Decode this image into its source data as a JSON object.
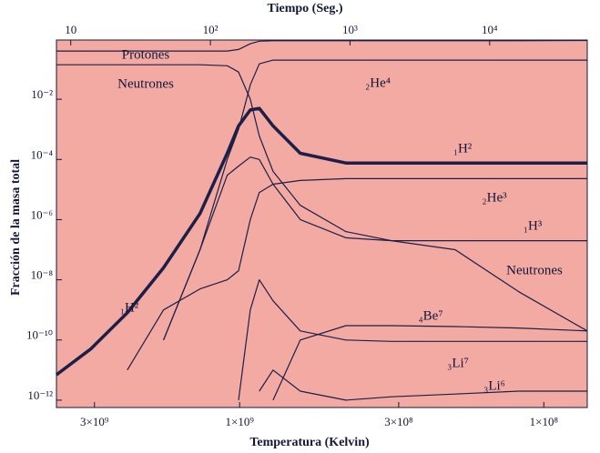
{
  "chart_data": {
    "type": "line",
    "x2label": "Tiempo (Seg.)",
    "xlabel": "Temperatura (Kelvin)",
    "ylabel": "Fracción de la masa total",
    "log_x": true,
    "log_y": true,
    "xlim": [
      7.9,
      50000
    ],
    "xticks": [
      10,
      {
        "value": 100,
        "label": "10²"
      },
      {
        "value": 1000,
        "label": "10³"
      },
      {
        "value": 10000,
        "label": "10⁴"
      }
    ],
    "x2lim": [
      4000000000.0,
      72000000.0
    ],
    "x2ticks": [
      {
        "value": 3000000000.0,
        "label": "3×10⁹"
      },
      {
        "value": 1000000000.0,
        "label": "1×10⁹"
      },
      {
        "value": 300000000.0,
        "label": "3×10⁸"
      },
      {
        "value": 100000000.0,
        "label": "1×10⁸"
      }
    ],
    "ylim": [
      5.7e-13,
      0.93
    ],
    "yticks": [
      {
        "value": 0.01,
        "label": "10⁻²"
      },
      {
        "value": 0.0001,
        "label": "10⁻⁴"
      },
      {
        "value": 1e-06,
        "label": "10⁻⁶"
      },
      {
        "value": 1e-08,
        "label": "10⁻⁸"
      },
      {
        "value": 1e-10,
        "label": "10⁻¹⁰"
      },
      {
        "value": 1e-12,
        "label": "10⁻¹²"
      }
    ],
    "background": "#f2aaa3",
    "x": [
      7.9,
      13.9,
      25.4,
      46.2,
      84.3,
      132,
      159,
      193,
      224,
      281,
      440,
      934,
      1980,
      5660,
      16200,
      50000
    ],
    "series": [
      {
        "color": "#1c1f48",
        "width": 1.2,
        "values": [
          0.4,
          0.4,
          0.4,
          0.4,
          0.4,
          0.4,
          0.45,
          0.7,
          0.85,
          0.88,
          0.88,
          0.88,
          0.88,
          0.88,
          0.88,
          0.9
        ]
      },
      {
        "color": "#1c1f48",
        "width": 1.2,
        "values": [
          0.14,
          0.14,
          0.14,
          0.14,
          0.14,
          0.13,
          0.08,
          0.01,
          0.0006,
          4e-05,
          3e-06,
          4e-07,
          2e-07,
          1e-07,
          4e-09,
          2e-10
        ]
      },
      {
        "color": "#1c1f48",
        "width": 1.2,
        "values": [
          null,
          null,
          null,
          1e-10,
          1e-07,
          0.0001,
          0.001,
          0.03,
          0.15,
          0.2,
          0.2,
          0.2,
          0.2,
          0.2,
          0.2,
          0.2
        ]
      },
      {
        "color": "#1c1f48",
        "width": 3.5,
        "values": [
          7e-12,
          5e-11,
          8e-10,
          2.5e-08,
          1.6e-06,
          0.00016,
          0.0013,
          0.0044,
          0.005,
          0.0013,
          0.00016,
          7.6e-05,
          7.6e-05,
          7.6e-05,
          7.6e-05,
          7.6e-05
        ]
      },
      {
        "color": "#1c1f48",
        "width": 1.2,
        "values": [
          null,
          null,
          1e-11,
          1e-09,
          5e-09,
          1e-08,
          2e-08,
          1e-06,
          8e-06,
          1.5e-05,
          2e-05,
          2.3e-05,
          2.3e-05,
          2.3e-05,
          2.3e-05,
          2.3e-05
        ]
      },
      {
        "color": "#1c1f48",
        "width": 1.2,
        "values": [
          null,
          null,
          null,
          1e-10,
          1e-07,
          3e-05,
          6e-05,
          0.00012,
          0.0001,
          1.5e-05,
          1e-06,
          2.5e-07,
          2e-07,
          2e-07,
          2e-07,
          2e-07
        ]
      },
      {
        "color": "#1c1f48",
        "width": 1.2,
        "values": [
          null,
          null,
          null,
          null,
          null,
          null,
          1e-12,
          1e-09,
          1e-08,
          2e-09,
          2e-10,
          1e-10,
          9e-11,
          9e-11,
          9e-11,
          9e-11
        ]
      },
      {
        "color": "#1c1f48",
        "width": 1.2,
        "values": [
          null,
          null,
          null,
          null,
          null,
          null,
          null,
          null,
          null,
          1e-12,
          1e-10,
          3e-10,
          3e-10,
          2.8e-10,
          2.5e-10,
          2e-10
        ]
      },
      {
        "color": "#1c1f48",
        "width": 1.2,
        "values": [
          null,
          null,
          null,
          null,
          null,
          null,
          null,
          null,
          2e-12,
          1e-11,
          2e-12,
          1e-12,
          1.3e-12,
          1.6e-12,
          2e-12,
          2e-12
        ]
      }
    ],
    "annotations": [
      "Protones",
      "Neutrones",
      "₂He⁴",
      "₁H²",
      "₂He³",
      "₁H³",
      "Neutrones",
      "₄Be⁷",
      "₃Li⁷",
      "₃Li⁶",
      "₁H²"
    ]
  }
}
